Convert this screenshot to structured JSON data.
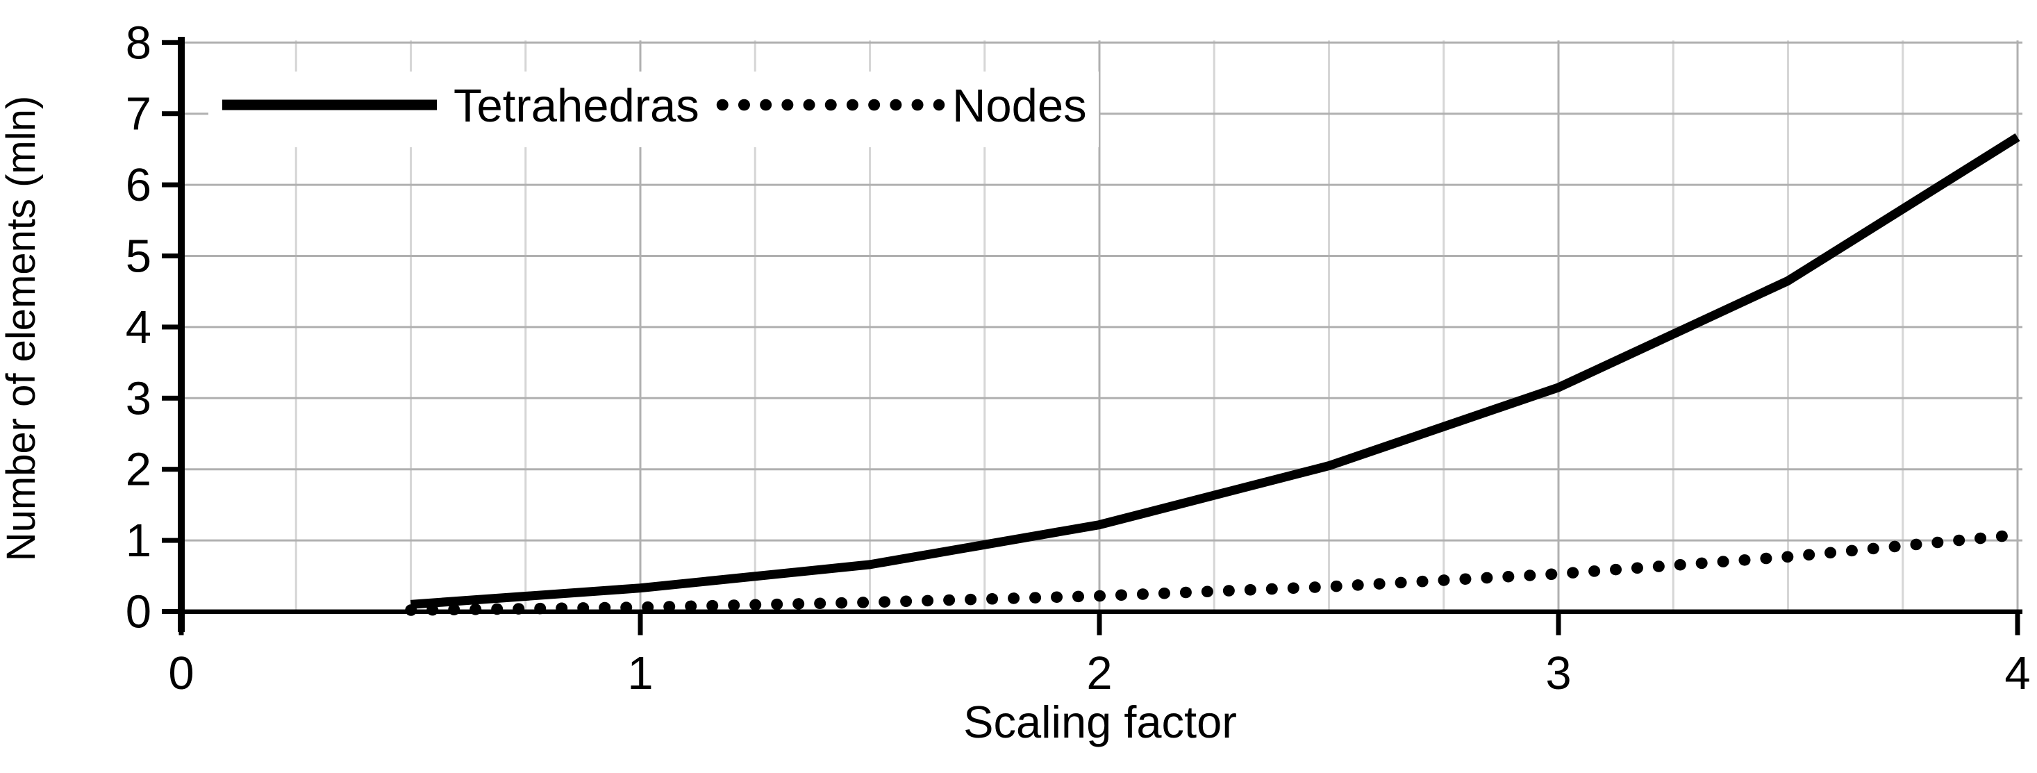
{
  "chart_data": {
    "type": "line",
    "title": "",
    "xlabel": "Scaling factor",
    "ylabel": "Number of elements (mln)",
    "xlim": [
      0,
      4
    ],
    "ylim": [
      0,
      8
    ],
    "xticks": [
      0,
      1,
      2,
      3,
      4
    ],
    "yticks": [
      0,
      1,
      2,
      3,
      4,
      5,
      6,
      7,
      8
    ],
    "x_minor_grid_step": 0.25,
    "grid": "on",
    "legend_position": "top-left",
    "x": [
      0.5,
      1.0,
      1.5,
      2.0,
      2.5,
      3.0,
      3.5,
      4.0
    ],
    "series": [
      {
        "name": "Tetrahedras",
        "line_style": "solid",
        "color": "#000000",
        "values": [
          0.1,
          0.33,
          0.66,
          1.22,
          2.05,
          3.15,
          4.65,
          6.67
        ]
      },
      {
        "name": "Nodes",
        "line_style": "dotted",
        "color": "#000000",
        "values": [
          0.02,
          0.06,
          0.13,
          0.22,
          0.35,
          0.53,
          0.77,
          1.08
        ]
      }
    ],
    "colors": {
      "background": "#ffffff",
      "axis": "#000000",
      "major_grid": "#b0b0b0",
      "minor_grid": "#d6d6d6",
      "text": "#000000"
    }
  }
}
